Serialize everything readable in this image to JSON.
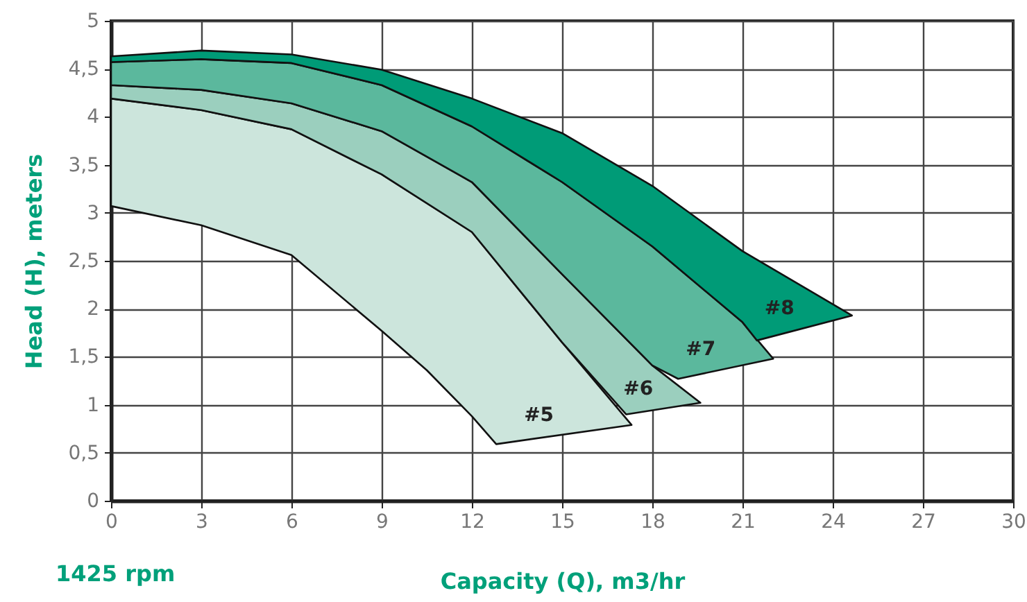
{
  "chart_data": {
    "type": "area",
    "xlabel": "Capacity (Q), m3/hr",
    "ylabel": "Head (H), meters",
    "annotations": [
      "1425 rpm"
    ],
    "xlim": [
      0,
      30
    ],
    "xticks": [
      0,
      3,
      6,
      9,
      12,
      15,
      18,
      21,
      24,
      27,
      30
    ],
    "ylim": [
      0,
      5
    ],
    "yticks": [
      0,
      {
        "value": 0.5,
        "label": "0,5"
      },
      1,
      {
        "value": 1.5,
        "label": "1,5"
      },
      2,
      {
        "value": 2.5,
        "label": "2,5"
      },
      3,
      {
        "value": 3.5,
        "label": "3,5"
      },
      4,
      {
        "value": 4.5,
        "label": "4,5"
      },
      5
    ],
    "grid": true,
    "line_style": "solid",
    "series": [
      {
        "name": "#5",
        "color": "#cce5dc",
        "x": [
          0,
          3,
          6,
          9,
          12,
          15,
          17.31,
          12.81,
          12,
          10.5,
          9,
          6,
          3,
          0
        ],
        "values": [
          4.19,
          4.07,
          3.87,
          3.4,
          2.8,
          1.65,
          0.79,
          0.59,
          0.88,
          1.36,
          1.77,
          2.56,
          2.87,
          3.07
        ]
      },
      {
        "name": "#6",
        "color": "#9bcfbe",
        "x": [
          0,
          3,
          6,
          9,
          12,
          15,
          18,
          19.6,
          17.13,
          15,
          12,
          9,
          6,
          3,
          0
        ],
        "values": [
          4.33,
          4.28,
          4.14,
          3.85,
          3.32,
          2.36,
          1.41,
          1.02,
          0.9,
          1.65,
          2.8,
          3.4,
          3.87,
          4.07,
          4.19
        ]
      },
      {
        "name": "#7",
        "color": "#5bb89d",
        "x": [
          0,
          3,
          6,
          9,
          12,
          15,
          18,
          21,
          22.02,
          18.86,
          18,
          15,
          12,
          9,
          6,
          3,
          0
        ],
        "values": [
          4.57,
          4.6,
          4.56,
          4.33,
          3.9,
          3.32,
          2.65,
          1.86,
          1.48,
          1.27,
          1.41,
          2.36,
          3.32,
          3.85,
          4.14,
          4.28,
          4.33
        ]
      },
      {
        "name": "#8",
        "color": "#009b77",
        "x": [
          0,
          3,
          6,
          9,
          12,
          15,
          18,
          21,
          24.64,
          21.48,
          21,
          18,
          15,
          12,
          9,
          6,
          3,
          0
        ],
        "values": [
          4.63,
          4.69,
          4.65,
          4.49,
          4.19,
          3.83,
          3.28,
          2.6,
          1.93,
          1.67,
          1.86,
          2.65,
          3.32,
          3.9,
          4.33,
          4.56,
          4.6,
          4.57
        ]
      }
    ]
  }
}
